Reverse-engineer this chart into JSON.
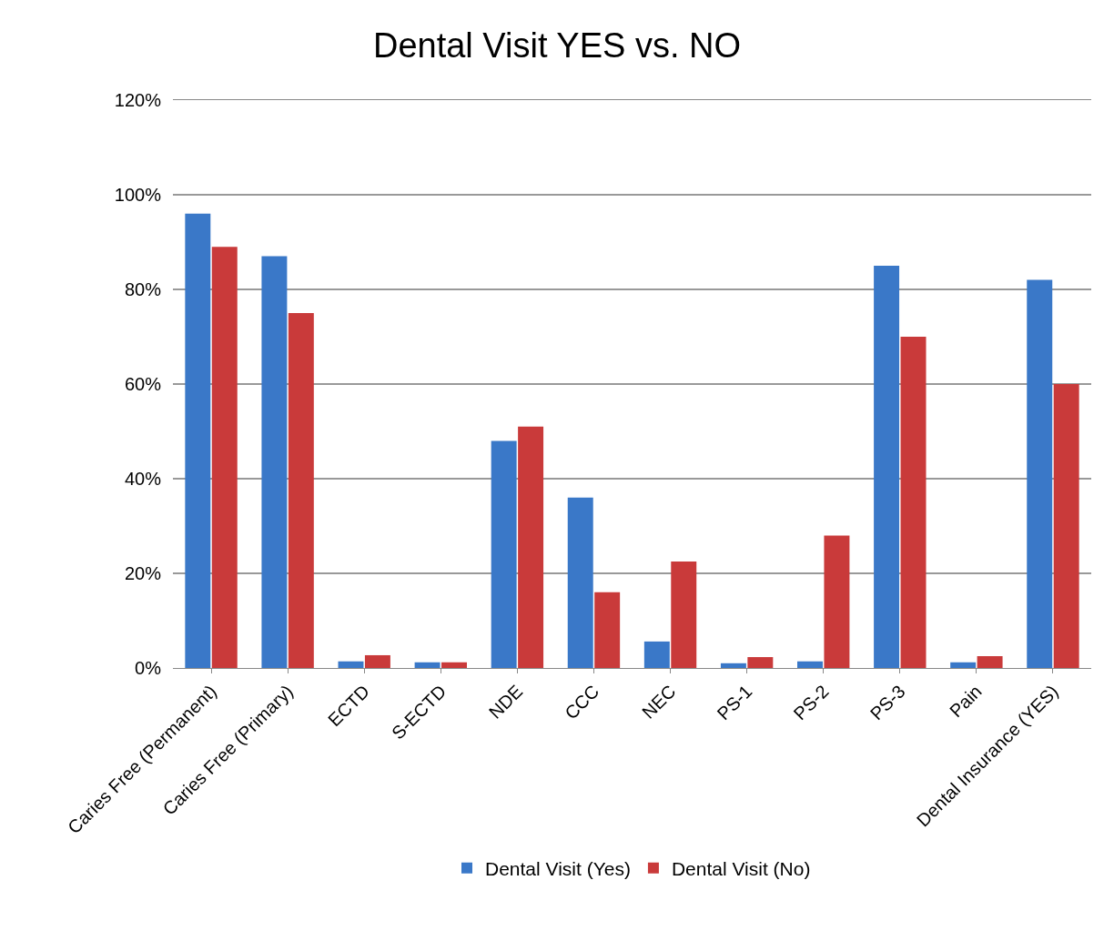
{
  "chart_data": {
    "type": "bar",
    "title": "Dental Visit YES vs. NO",
    "categories": [
      "Caries Free (Permanent)",
      "Caries Free (Primary)",
      "ECTD",
      "S-ECTD",
      "NDE",
      "CCC",
      "NEC",
      "PS-1",
      "PS-2",
      "PS-3",
      "Pain",
      "Dental Insurance (YES)"
    ],
    "series": [
      {
        "name": "Dental Visit (Yes)",
        "color": "#3a78c8",
        "values": [
          96,
          87,
          1.4,
          1.2,
          48,
          36,
          5.6,
          1.0,
          1.4,
          85,
          1.2,
          82
        ]
      },
      {
        "name": "Dental Visit (No)",
        "color": "#c93a3a",
        "values": [
          89,
          75,
          2.7,
          1.2,
          51,
          16,
          22.5,
          2.3,
          28,
          70,
          2.5,
          60
        ]
      }
    ],
    "ylim": [
      0,
      120
    ],
    "yticks": [
      {
        "value": 0,
        "label": "0%"
      },
      {
        "value": 20,
        "label": "20%"
      },
      {
        "value": 40,
        "label": "40%"
      },
      {
        "value": 60,
        "label": "60%"
      },
      {
        "value": 80,
        "label": "80%"
      },
      {
        "value": 100,
        "label": "100%"
      },
      {
        "value": 120,
        "label": "120%"
      }
    ],
    "grid": "y",
    "legend": "bottom"
  }
}
